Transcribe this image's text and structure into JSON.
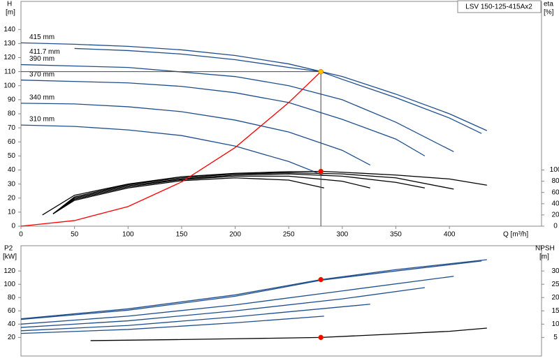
{
  "chart_data": [
    {
      "type": "line",
      "title": "LSV 150-125-415Ax2",
      "ylabel": "H",
      "yunit": "[m]",
      "y2label": "eta",
      "y2unit": "[%]",
      "xlabel": "Q [m³/h]",
      "xlim": [
        0,
        486
      ],
      "xticks": [
        0,
        50,
        100,
        150,
        200,
        250,
        300,
        350,
        400
      ],
      "ylim": [
        0,
        160
      ],
      "yticks": [
        0,
        10,
        20,
        30,
        40,
        50,
        60,
        70,
        80,
        90,
        100,
        110,
        120,
        130,
        140
      ],
      "y2lim": [
        0,
        400
      ],
      "y2ticks": [
        0,
        20,
        40,
        60,
        80,
        100
      ],
      "grid": false,
      "series": [
        {
          "name": "415 mm",
          "color": "#1f4e8c",
          "x": [
            0,
            50,
            100,
            150,
            200,
            250,
            300,
            350,
            400,
            435
          ],
          "values": [
            130.5,
            129.5,
            128,
            125.5,
            121.5,
            115.5,
            106.5,
            94,
            80,
            68
          ]
        },
        {
          "name": "411.7 mm",
          "color": "#1f4e8c",
          "x": [
            50,
            100,
            150,
            200,
            250,
            280,
            300,
            350,
            400,
            430
          ],
          "values": [
            126.5,
            125,
            122.5,
            118.5,
            113,
            110,
            104.5,
            91.5,
            77,
            66
          ]
        },
        {
          "name": "390 mm",
          "color": "#1f4e8c",
          "x": [
            0,
            100,
            200,
            250,
            300,
            350,
            404
          ],
          "values": [
            115,
            113,
            106.5,
            100,
            90,
            74,
            53
          ]
        },
        {
          "name": "370 mm",
          "color": "#1f4e8c",
          "x": [
            0,
            100,
            150,
            200,
            250,
            300,
            350,
            377
          ],
          "values": [
            104,
            102,
            99.5,
            95,
            88,
            76,
            62,
            50
          ]
        },
        {
          "name": "340 mm",
          "color": "#1f4e8c",
          "x": [
            0,
            50,
            100,
            150,
            200,
            250,
            300,
            326
          ],
          "values": [
            87.5,
            87,
            85,
            81.5,
            75.5,
            67,
            54,
            43.5
          ]
        },
        {
          "name": "310 mm",
          "color": "#1f4e8c",
          "x": [
            0,
            50,
            100,
            150,
            200,
            250,
            283
          ],
          "values": [
            72,
            71,
            68.5,
            64.5,
            57,
            46,
            36
          ]
        },
        {
          "color": "#000000",
          "axis": "y2",
          "x": [
            20,
            50,
            100,
            150,
            200,
            250,
            280,
            300,
            350,
            400,
            435
          ],
          "values": [
            20,
            55,
            75,
            88,
            94,
            97,
            97.5,
            96,
            91,
            84,
            73
          ]
        },
        {
          "color": "#000000",
          "axis": "y2",
          "x": [
            30,
            50,
            100,
            150,
            200,
            250,
            300,
            350,
            404
          ],
          "values": [
            22,
            52,
            74,
            86,
            93,
            95,
            93,
            86,
            66
          ]
        },
        {
          "color": "#000000",
          "axis": "y2",
          "x": [
            30,
            50,
            100,
            150,
            200,
            250,
            300,
            350,
            377
          ],
          "values": [
            22,
            50,
            72,
            84,
            91,
            93,
            89,
            78,
            68
          ]
        },
        {
          "color": "#000000",
          "axis": "y2",
          "x": [
            30,
            50,
            100,
            150,
            200,
            250,
            300,
            326
          ],
          "values": [
            22,
            48,
            70,
            83,
            89,
            89,
            80,
            68
          ]
        },
        {
          "color": "#000000",
          "axis": "y2",
          "x": [
            30,
            50,
            100,
            150,
            200,
            250,
            283
          ],
          "values": [
            22,
            46,
            68,
            81,
            86,
            82,
            68
          ]
        },
        {
          "color": "#ff0000",
          "x": [
            0,
            50,
            100,
            150,
            200,
            250,
            280
          ],
          "values": [
            0,
            4,
            14,
            31.5,
            56,
            88,
            110
          ]
        }
      ],
      "points": [
        {
          "x": 280,
          "y": 110,
          "color": "#ffc000",
          "drop_lines": true
        },
        {
          "x": 280,
          "y": 97.5,
          "color": "#ff0000",
          "axis": "y2"
        }
      ]
    },
    {
      "type": "line",
      "ylabel": "P2",
      "yunit": "[kW]",
      "y2label": "NPSH",
      "y2unit": "[m]",
      "xlim": [
        0,
        486
      ],
      "ylim": [
        -8,
        158
      ],
      "yticks": [
        20,
        40,
        60,
        80,
        100,
        120
      ],
      "y2lim": [
        -2,
        39.5
      ],
      "y2ticks": [
        5,
        10,
        15,
        20,
        25,
        30
      ],
      "grid": false,
      "series": [
        {
          "color": "#1f4e8c",
          "x": [
            0,
            100,
            200,
            280,
            350,
            435
          ],
          "values": [
            48,
            63,
            84,
            107,
            122,
            137
          ]
        },
        {
          "color": "#1f4e8c",
          "x": [
            0,
            100,
            200,
            280,
            350,
            430
          ],
          "values": [
            47,
            61,
            82,
            106,
            120,
            135
          ]
        },
        {
          "color": "#1f4e8c",
          "x": [
            0,
            100,
            200,
            300,
            404
          ],
          "values": [
            40,
            52,
            69,
            90,
            112
          ]
        },
        {
          "color": "#1f4e8c",
          "x": [
            0,
            100,
            200,
            300,
            377
          ],
          "values": [
            35,
            45,
            60,
            78,
            95
          ]
        },
        {
          "color": "#1f4e8c",
          "x": [
            0,
            100,
            200,
            326
          ],
          "values": [
            30,
            38,
            51,
            70
          ]
        },
        {
          "color": "#1f4e8c",
          "x": [
            0,
            100,
            200,
            283
          ],
          "values": [
            26,
            32,
            42,
            52
          ]
        },
        {
          "color": "#000000",
          "axis": "y2",
          "x": [
            65,
            150,
            200,
            250,
            280,
            350,
            400,
            435
          ],
          "values": [
            3.8,
            4.2,
            4.5,
            4.8,
            5,
            6.3,
            7.3,
            8.5
          ]
        }
      ],
      "points": [
        {
          "x": 280,
          "y": 107,
          "color": "#ff0000"
        },
        {
          "x": 280,
          "y": 5,
          "color": "#ff0000",
          "axis": "y2"
        }
      ]
    }
  ]
}
